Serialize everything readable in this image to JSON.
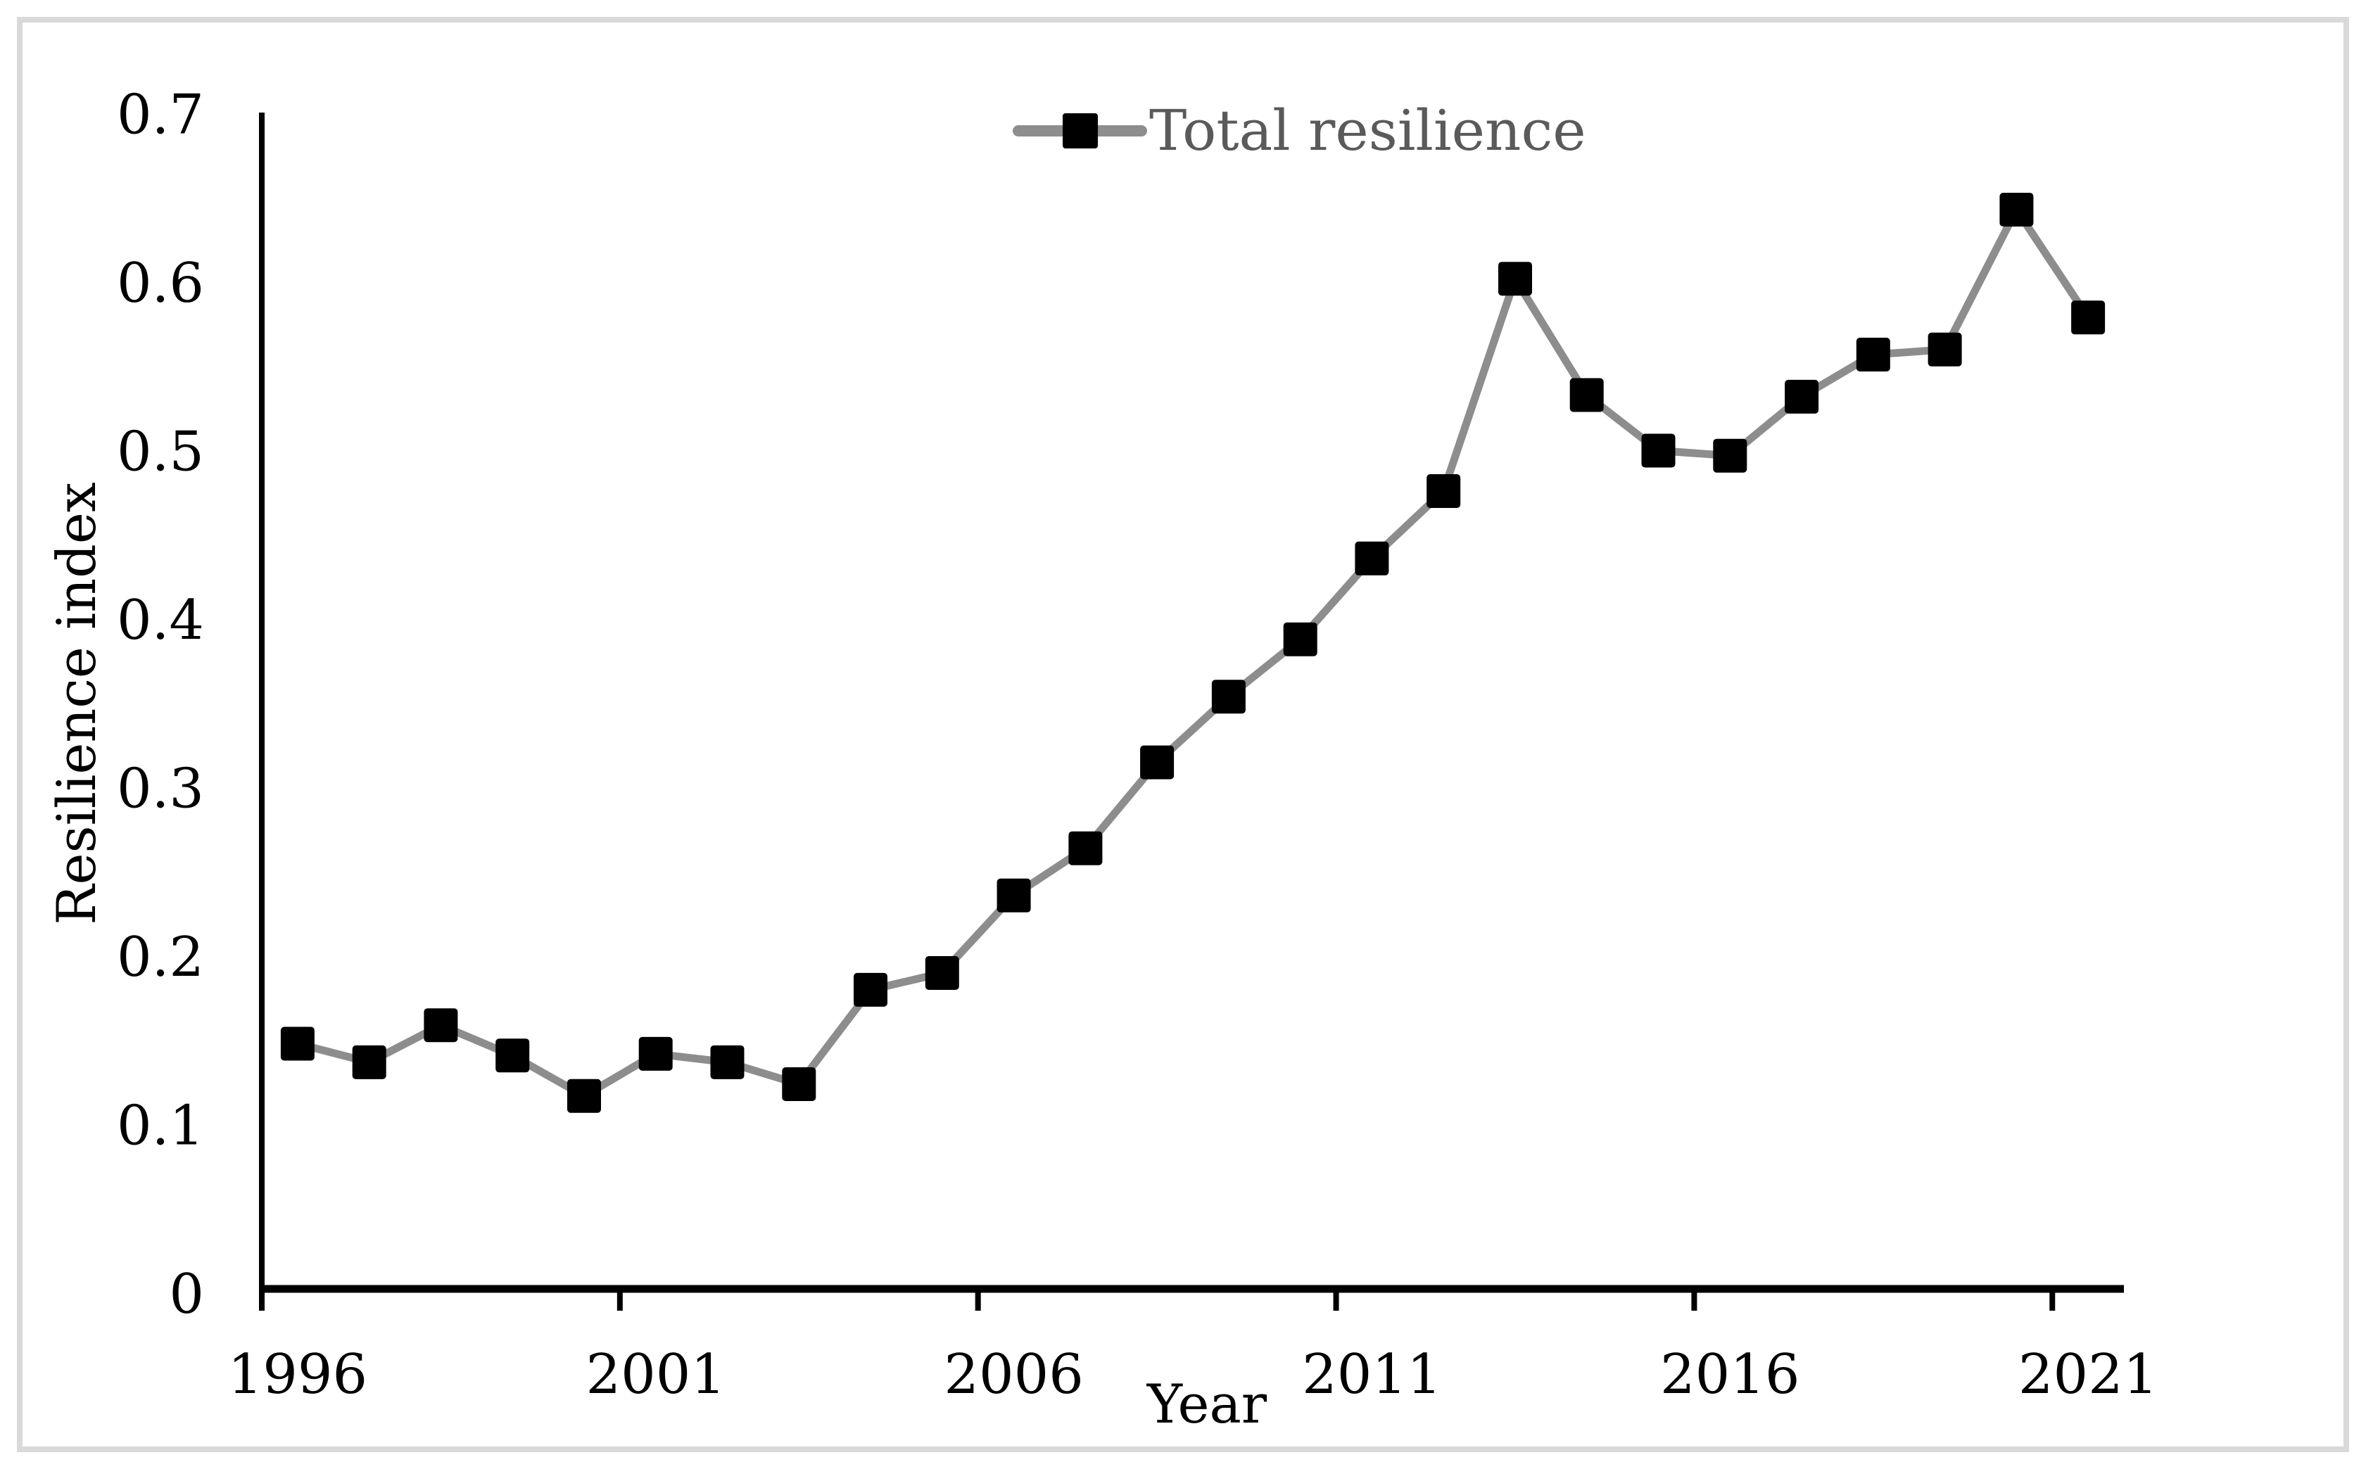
{
  "figure": {
    "legend": {
      "label": "Total resilience"
    },
    "x_axis_title": "Year",
    "y_axis_title": "Resilience index"
  },
  "chart_data": {
    "type": "line",
    "title": "",
    "x": [
      1996,
      1997,
      1998,
      1999,
      2000,
      2001,
      2002,
      2003,
      2004,
      2005,
      2006,
      2007,
      2008,
      2009,
      2010,
      2011,
      2012,
      2013,
      2014,
      2015,
      2016,
      2017,
      2018,
      2019,
      2020,
      2021
    ],
    "series": [
      {
        "name": "Total resilience",
        "marker": "black-square",
        "values": [
          0.148,
          0.137,
          0.159,
          0.141,
          0.117,
          0.142,
          0.137,
          0.124,
          0.18,
          0.19,
          0.236,
          0.264,
          0.315,
          0.354,
          0.388,
          0.436,
          0.476,
          0.602,
          0.533,
          0.5,
          0.497,
          0.532,
          0.557,
          0.56,
          0.643,
          0.579
        ]
      }
    ],
    "xlabel": "Year",
    "ylabel": "Resilience index",
    "ylim": [
      0,
      0.7
    ],
    "ytick_labels": [
      "0",
      "0.1",
      "0.2",
      "0.3",
      "0.4",
      "0.5",
      "0.6",
      "0.7"
    ],
    "xtick_labels": [
      "1996",
      "2001",
      "2006",
      "2011",
      "2016",
      "2021"
    ],
    "xtick_indices": [
      0,
      5,
      10,
      15,
      20,
      25
    ],
    "grid": false,
    "legend_position": "top-center",
    "colors": {
      "line": "#8d8d8d",
      "marker": "#000000",
      "legend_text": "#5a5a5a",
      "axis": "#000000",
      "frame": "#d9d9d9",
      "background": "#ffffff"
    }
  }
}
